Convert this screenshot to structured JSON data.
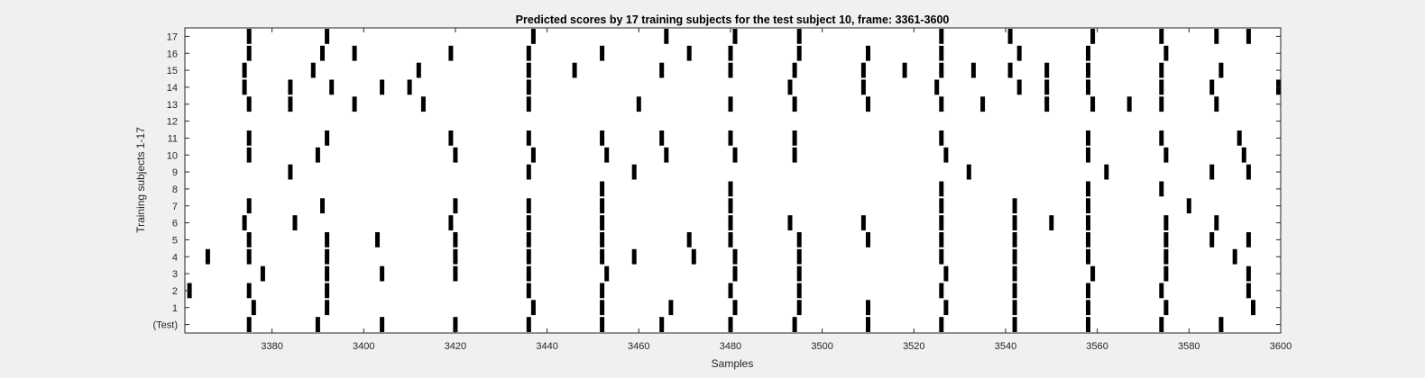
{
  "chart_data": {
    "type": "heatmap",
    "title": "Predicted scores by 17 training subjects for the test subject 10, frame: 3361-3600",
    "xlabel": "Samples",
    "ylabel": "Training subjects 1-17",
    "xlim": [
      3361,
      3600
    ],
    "x_ticks": [
      3380,
      3400,
      3420,
      3440,
      3460,
      3480,
      3500,
      3520,
      3540,
      3560,
      3580,
      3600
    ],
    "y_tick_labels": [
      "(Test)",
      "1",
      "2",
      "3",
      "4",
      "5",
      "6",
      "7",
      "8",
      "9",
      "10",
      "11",
      "12",
      "13",
      "14",
      "15",
      "16",
      "17"
    ],
    "grid": false,
    "colors": {
      "mark": "#000000",
      "plot_background": "#ffffff",
      "figure_background": "#f0f0f0"
    },
    "rows": [
      {
        "label": "(Test)",
        "x": [
          3375,
          3390,
          3404,
          3420,
          3436,
          3452,
          3465,
          3480,
          3494,
          3510,
          3526,
          3542,
          3558,
          3574,
          3587
        ]
      },
      {
        "label": "1",
        "x": [
          3376,
          3392,
          3437,
          3452,
          3467,
          3481,
          3495,
          3510,
          3527,
          3542,
          3558,
          3575,
          3594
        ]
      },
      {
        "label": "2",
        "x": [
          3362,
          3375,
          3392,
          3436,
          3452,
          3480,
          3495,
          3526,
          3542,
          3558,
          3574,
          3593
        ]
      },
      {
        "label": "3",
        "x": [
          3378,
          3392,
          3404,
          3420,
          3436,
          3453,
          3481,
          3495,
          3527,
          3542,
          3559,
          3575,
          3593
        ]
      },
      {
        "label": "4",
        "x": [
          3366,
          3375,
          3392,
          3420,
          3436,
          3452,
          3459,
          3472,
          3481,
          3495,
          3526,
          3542,
          3558,
          3575,
          3590
        ]
      },
      {
        "label": "5",
        "x": [
          3375,
          3392,
          3403,
          3420,
          3436,
          3452,
          3471,
          3480,
          3495,
          3510,
          3526,
          3542,
          3558,
          3575,
          3585,
          3593
        ]
      },
      {
        "label": "6",
        "x": [
          3374,
          3385,
          3419,
          3436,
          3452,
          3480,
          3493,
          3509,
          3526,
          3542,
          3550,
          3558,
          3575,
          3586
        ]
      },
      {
        "label": "7",
        "x": [
          3375,
          3391,
          3420,
          3436,
          3452,
          3480,
          3526,
          3542,
          3558,
          3580
        ]
      },
      {
        "label": "8",
        "x": [
          3452,
          3480,
          3526,
          3558,
          3574
        ]
      },
      {
        "label": "9",
        "x": [
          3384,
          3436,
          3459,
          3532,
          3562,
          3585,
          3593
        ]
      },
      {
        "label": "10",
        "x": [
          3375,
          3390,
          3420,
          3437,
          3453,
          3466,
          3481,
          3494,
          3527,
          3558,
          3575,
          3592
        ]
      },
      {
        "label": "11",
        "x": [
          3375,
          3392,
          3419,
          3436,
          3452,
          3465,
          3480,
          3494,
          3526,
          3558,
          3574,
          3591
        ]
      },
      {
        "label": "12",
        "x": []
      },
      {
        "label": "13",
        "x": [
          3375,
          3384,
          3398,
          3413,
          3436,
          3460,
          3480,
          3494,
          3510,
          3526,
          3535,
          3549,
          3559,
          3567,
          3574,
          3586
        ]
      },
      {
        "label": "14",
        "x": [
          3374,
          3384,
          3393,
          3404,
          3410,
          3436,
          3493,
          3509,
          3525,
          3543,
          3549,
          3558,
          3574,
          3585,
          3600
        ]
      },
      {
        "label": "15",
        "x": [
          3374,
          3389,
          3412,
          3436,
          3446,
          3465,
          3480,
          3494,
          3509,
          3518,
          3526,
          3533,
          3541,
          3549,
          3558,
          3574,
          3587
        ]
      },
      {
        "label": "16",
        "x": [
          3375,
          3391,
          3398,
          3419,
          3436,
          3452,
          3471,
          3480,
          3495,
          3510,
          3526,
          3543,
          3558,
          3575
        ]
      },
      {
        "label": "17",
        "x": [
          3375,
          3392,
          3437,
          3466,
          3481,
          3495,
          3526,
          3541,
          3559,
          3574,
          3586,
          3593
        ]
      }
    ]
  }
}
